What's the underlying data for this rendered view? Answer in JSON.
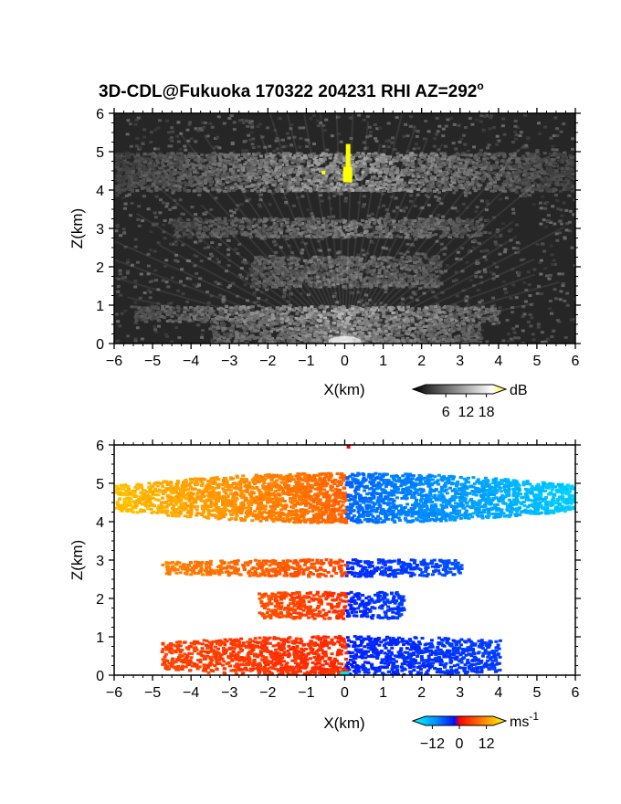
{
  "title": {
    "main": "3D-CDL@Fukuoka 170322 204231 RHI AZ=292",
    "deg": "o"
  },
  "chart_data": [
    {
      "type": "heatmap",
      "name": "reflectivity",
      "xlabel": "X(km)",
      "ylabel": "Z(km)",
      "xlim": [
        -6,
        6
      ],
      "ylim": [
        0,
        6
      ],
      "xticks": [
        "-6",
        "-5",
        "-4",
        "-3",
        "-2",
        "-1",
        "0",
        "1",
        "2",
        "3",
        "4",
        "5",
        "6"
      ],
      "yticks": [
        "0",
        "1",
        "2",
        "3",
        "4",
        "5",
        "6"
      ],
      "colorbar": {
        "unit": "dB",
        "ticks": [
          "6",
          "12",
          "18"
        ],
        "range": [
          0,
          20
        ],
        "colormap": "gray"
      },
      "layers": [
        {
          "z_km": [
            4.0,
            5.0
          ],
          "x_extent_km": [
            -6,
            6
          ],
          "intensity_db": 12
        },
        {
          "z_km": [
            2.8,
            3.3
          ],
          "x_extent_km": [
            -4.5,
            3.5
          ],
          "intensity_db": 9
        },
        {
          "z_km": [
            1.5,
            2.3
          ],
          "x_extent_km": [
            -2.5,
            2.5
          ],
          "intensity_db": 8
        },
        {
          "z_km": [
            0.6,
            1.0
          ],
          "x_extent_km": [
            -5.5,
            4.0
          ],
          "intensity_db": 13
        },
        {
          "z_km": [
            0.0,
            0.6
          ],
          "x_extent_km": [
            -3.5,
            3.5
          ],
          "intensity_db": 11
        }
      ],
      "highlight": {
        "x_km": 0.1,
        "z_km": [
          4.3,
          5.2
        ],
        "intensity_db": 20,
        "color": "#ffff00"
      }
    },
    {
      "type": "heatmap",
      "name": "doppler_velocity",
      "xlabel": "X(km)",
      "ylabel": "Z(km)",
      "xlim": [
        -6,
        6
      ],
      "ylim": [
        0,
        6
      ],
      "xticks": [
        "-6",
        "-5",
        "-4",
        "-3",
        "-2",
        "-1",
        "0",
        "1",
        "2",
        "3",
        "4",
        "5",
        "6"
      ],
      "yticks": [
        "0",
        "1",
        "2",
        "3",
        "4",
        "5",
        "6"
      ],
      "colorbar": {
        "unit": "ms",
        "unit_exp": "-1",
        "ticks": [
          "-12",
          "0",
          "12"
        ],
        "range": [
          -15,
          15
        ],
        "colormap": "cyan-blue-red-yellow"
      },
      "layers": [
        {
          "z_km": [
            4.0,
            5.3
          ],
          "x_extent_km": [
            -6,
            6
          ],
          "velocity_at_left": 11,
          "velocity_at_right": -12
        },
        {
          "z_km": [
            2.6,
            3.05
          ],
          "x_extent_km": [
            -4.8,
            3.0
          ],
          "velocity_at_left": 7,
          "velocity_at_right": -4
        },
        {
          "z_km": [
            1.5,
            2.2
          ],
          "x_extent_km": [
            -2.3,
            1.5
          ],
          "velocity_at_left": 4,
          "velocity_at_right": -3
        },
        {
          "z_km": [
            0.0,
            1.05
          ],
          "x_extent_km": [
            -4.8,
            4.0
          ],
          "velocity_at_left": 3,
          "velocity_at_right": -3
        }
      ]
    }
  ],
  "colors": {
    "highlight": "#ffff00"
  }
}
